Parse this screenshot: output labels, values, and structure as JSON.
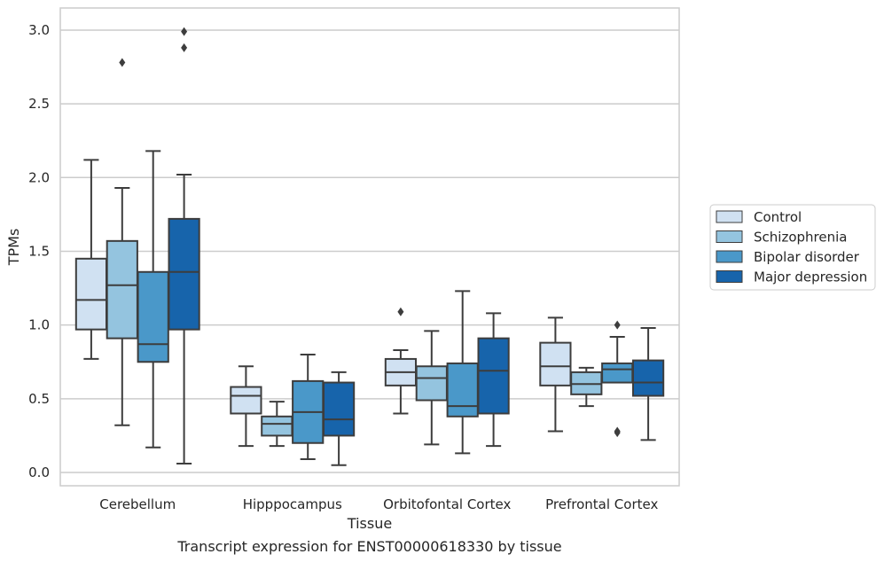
{
  "caption": "Transcript expression for ENST00000618330 by tissue",
  "chart_data": {
    "type": "boxplot",
    "xlabel": "Tissue",
    "ylabel": "TPMs",
    "ylim": [
      -0.09,
      3.15
    ],
    "yticks": [
      0.0,
      0.5,
      1.0,
      1.5,
      2.0,
      2.5,
      3.0
    ],
    "ytick_labels": [
      "0.0",
      "0.5",
      "1.0",
      "1.5",
      "2.0",
      "2.5",
      "3.0"
    ],
    "grid": "horizontal",
    "legend_position": "right",
    "categories": [
      "Cerebellum",
      "Hipppocampus",
      "Orbitofontal Cortex",
      "Prefrontal Cortex"
    ],
    "series": [
      {
        "name": "Control",
        "color": "#d0e1f2",
        "boxes": [
          {
            "min": 0.77,
            "q1": 0.97,
            "median": 1.17,
            "q3": 1.45,
            "max": 2.12,
            "outliers": []
          },
          {
            "min": 0.18,
            "q1": 0.4,
            "median": 0.52,
            "q3": 0.58,
            "max": 0.72,
            "outliers": []
          },
          {
            "min": 0.4,
            "q1": 0.59,
            "median": 0.68,
            "q3": 0.77,
            "max": 0.83,
            "outliers": [
              1.09
            ]
          },
          {
            "min": 0.28,
            "q1": 0.59,
            "median": 0.72,
            "q3": 0.88,
            "max": 1.05,
            "outliers": []
          }
        ]
      },
      {
        "name": "Schizophrenia",
        "color": "#94c4df",
        "boxes": [
          {
            "min": 0.32,
            "q1": 0.91,
            "median": 1.27,
            "q3": 1.57,
            "max": 1.93,
            "outliers": [
              2.78
            ]
          },
          {
            "min": 0.18,
            "q1": 0.25,
            "median": 0.33,
            "q3": 0.38,
            "max": 0.48,
            "outliers": []
          },
          {
            "min": 0.19,
            "q1": 0.49,
            "median": 0.64,
            "q3": 0.72,
            "max": 0.96,
            "outliers": []
          },
          {
            "min": 0.45,
            "q1": 0.53,
            "median": 0.6,
            "q3": 0.68,
            "max": 0.71,
            "outliers": []
          }
        ]
      },
      {
        "name": "Bipolar disorder",
        "color": "#4a98c9",
        "boxes": [
          {
            "min": 0.17,
            "q1": 0.75,
            "median": 0.87,
            "q3": 1.36,
            "max": 2.18,
            "outliers": []
          },
          {
            "min": 0.09,
            "q1": 0.2,
            "median": 0.41,
            "q3": 0.62,
            "max": 0.8,
            "outliers": []
          },
          {
            "min": 0.13,
            "q1": 0.38,
            "median": 0.45,
            "q3": 0.74,
            "max": 1.23,
            "outliers": []
          },
          {
            "min": 0.61,
            "q1": 0.61,
            "median": 0.7,
            "q3": 0.74,
            "max": 0.92,
            "outliers": [
              1.0,
              0.28,
              0.27
            ]
          }
        ]
      },
      {
        "name": "Major depression",
        "color": "#1764ab",
        "boxes": [
          {
            "min": 0.06,
            "q1": 0.97,
            "median": 1.36,
            "q3": 1.72,
            "max": 2.02,
            "outliers": [
              2.99,
              2.88
            ]
          },
          {
            "min": 0.05,
            "q1": 0.25,
            "median": 0.36,
            "q3": 0.61,
            "max": 0.68,
            "outliers": []
          },
          {
            "min": 0.18,
            "q1": 0.4,
            "median": 0.69,
            "q3": 0.91,
            "max": 1.08,
            "outliers": []
          },
          {
            "min": 0.22,
            "q1": 0.52,
            "median": 0.61,
            "q3": 0.76,
            "max": 0.98,
            "outliers": []
          }
        ]
      }
    ]
  }
}
